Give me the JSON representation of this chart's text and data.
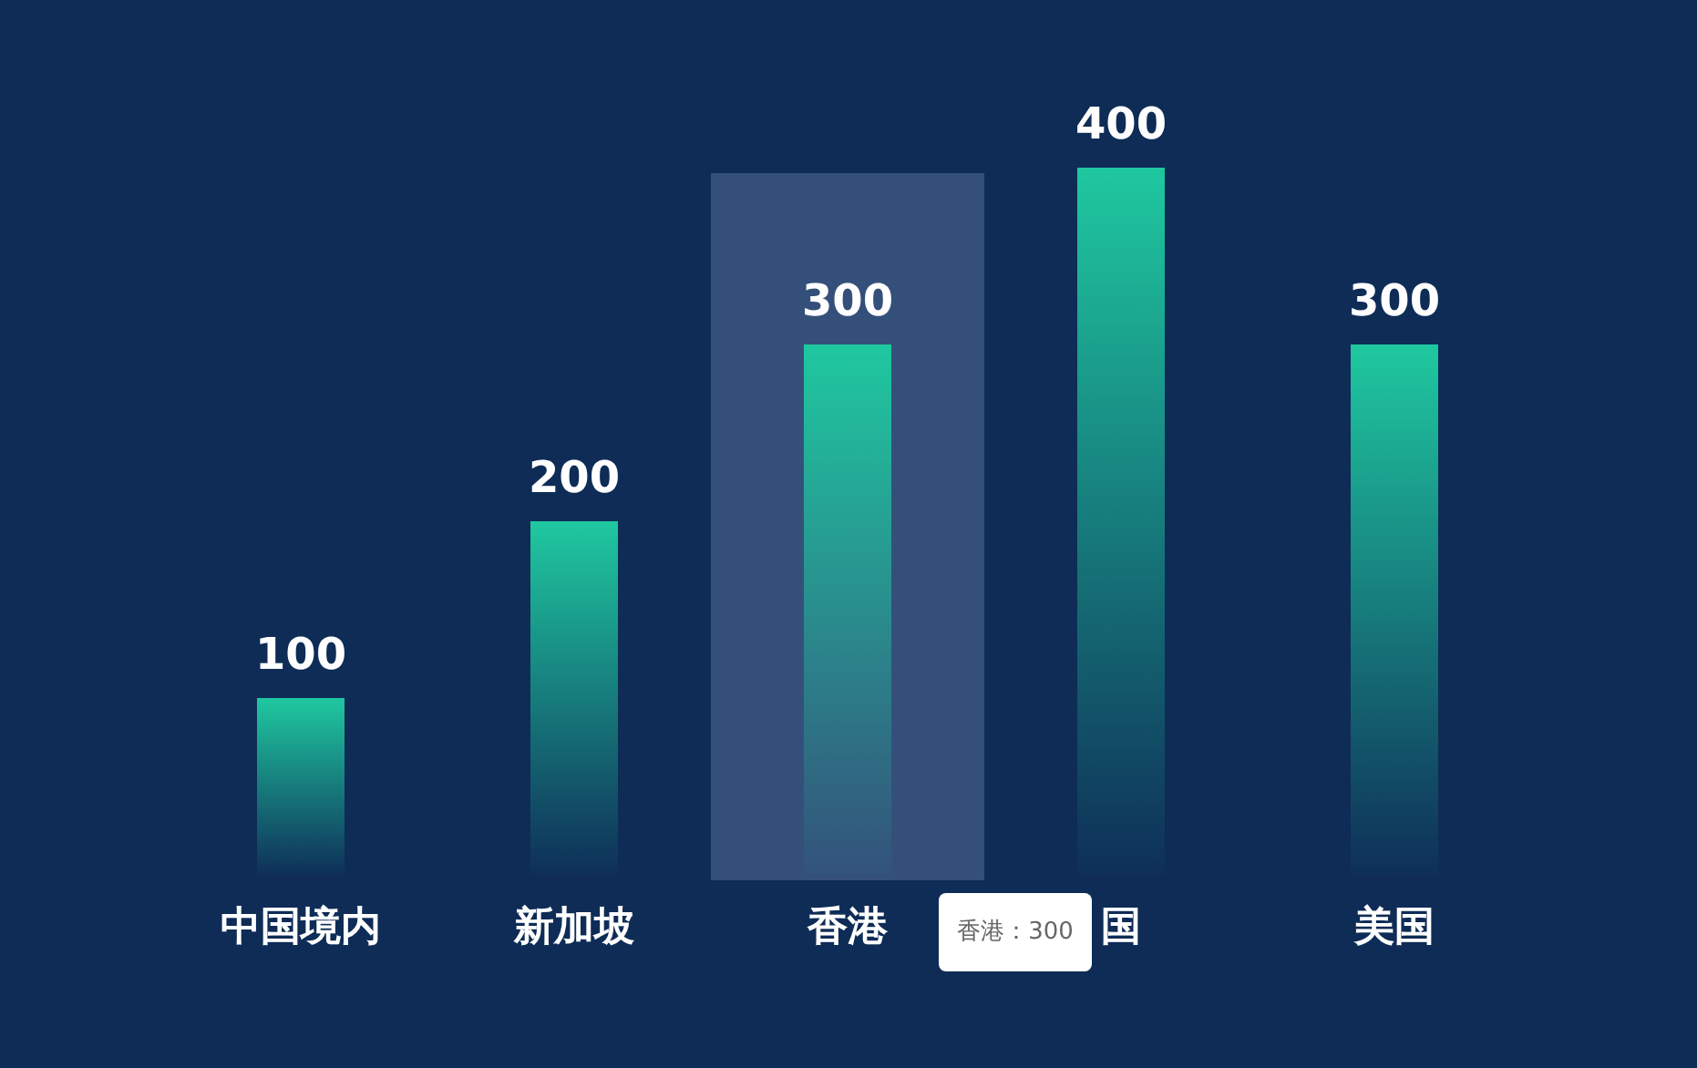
{
  "chart_data": {
    "type": "bar",
    "categories": [
      "中国境内",
      "新加坡",
      "香港",
      "国",
      "美国"
    ],
    "values": [
      100,
      200,
      300,
      400,
      300
    ],
    "color": "#1fc8a0",
    "data_labels": true,
    "bands": [
      {
        "axis": "x",
        "from": "香港",
        "to": "香港",
        "color": "#34507a"
      }
    ],
    "annotations": [
      "香港：300"
    ]
  }
}
